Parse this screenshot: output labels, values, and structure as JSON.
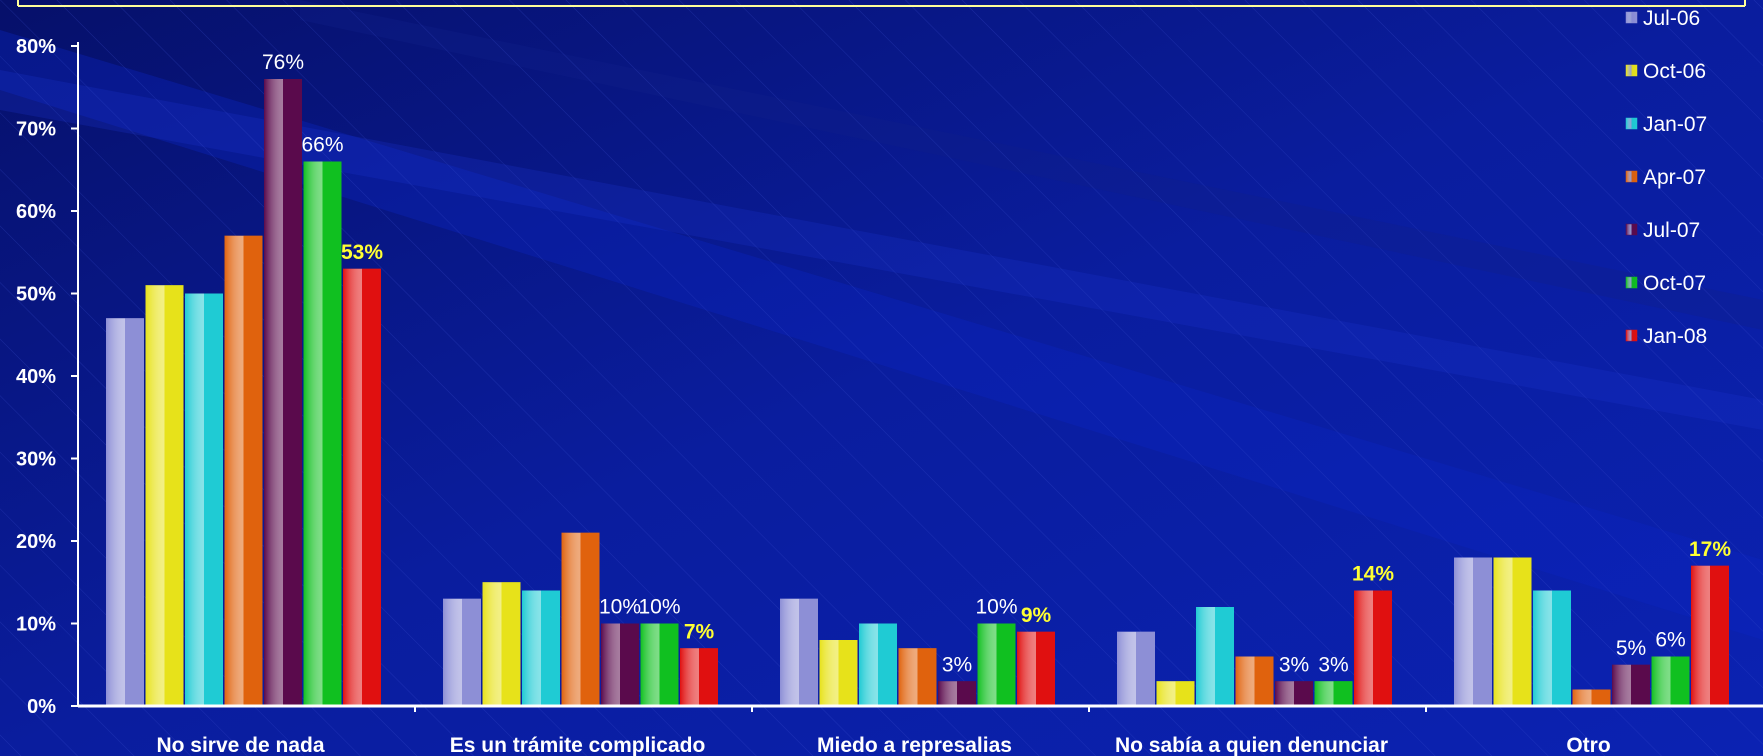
{
  "chart_data": {
    "type": "bar",
    "categories": [
      "No sirve  de nada",
      "Es un trámite complicado",
      "Miedo a represalias",
      "No sabía a quien denunciar",
      "Otro"
    ],
    "series": [
      {
        "name": "Jul-06",
        "color": "#8d8fd6",
        "values": [
          47,
          13,
          13,
          9,
          18
        ]
      },
      {
        "name": "Oct-06",
        "color": "#e7e21a",
        "values": [
          51,
          15,
          8,
          3,
          18
        ]
      },
      {
        "name": "Jan-07",
        "color": "#1fcbd4",
        "values": [
          50,
          14,
          10,
          12,
          14
        ]
      },
      {
        "name": "Apr-07",
        "color": "#e0620d",
        "values": [
          57,
          21,
          7,
          6,
          2
        ]
      },
      {
        "name": "Jul-07",
        "color": "#5a0a4c",
        "values": [
          76,
          10,
          3,
          3,
          5
        ]
      },
      {
        "name": "Oct-07",
        "color": "#10c020",
        "values": [
          66,
          10,
          10,
          3,
          6
        ]
      },
      {
        "name": "Jan-08",
        "color": "#e01010",
        "values": [
          53,
          7,
          9,
          14,
          17
        ]
      }
    ],
    "data_labels": [
      {
        "category": 0,
        "series": 4,
        "text": "76%",
        "style": "white"
      },
      {
        "category": 0,
        "series": 5,
        "text": "66%",
        "style": "white"
      },
      {
        "category": 0,
        "series": 6,
        "text": "53%",
        "style": "yellow"
      },
      {
        "category": 1,
        "series": 4,
        "text": "10%",
        "style": "white"
      },
      {
        "category": 1,
        "series": 5,
        "text": "10%",
        "style": "white"
      },
      {
        "category": 1,
        "series": 6,
        "text": "7%",
        "style": "yellow"
      },
      {
        "category": 2,
        "series": 4,
        "text": "3%",
        "style": "white"
      },
      {
        "category": 2,
        "series": 5,
        "text": "10%",
        "style": "white"
      },
      {
        "category": 2,
        "series": 6,
        "text": "9%",
        "style": "yellow"
      },
      {
        "category": 3,
        "series": 4,
        "text": "3%",
        "style": "white"
      },
      {
        "category": 3,
        "series": 5,
        "text": "3%",
        "style": "white"
      },
      {
        "category": 3,
        "series": 6,
        "text": "14%",
        "style": "yellow"
      },
      {
        "category": 4,
        "series": 4,
        "text": "5%",
        "style": "white"
      },
      {
        "category": 4,
        "series": 5,
        "text": "6%",
        "style": "white"
      },
      {
        "category": 4,
        "series": 6,
        "text": "17%",
        "style": "yellow"
      }
    ],
    "yticks": [
      "0%",
      "10%",
      "20%",
      "30%",
      "40%",
      "50%",
      "60%",
      "70%",
      "80%"
    ],
    "ylim": [
      0,
      80
    ],
    "unit": "%",
    "legend_position": "top-right",
    "grid": false,
    "colors": {
      "label_white": "#ffffff",
      "label_yellow": "#ffff33",
      "axis": "#ffffff",
      "frame_line": "#ffff99"
    }
  }
}
